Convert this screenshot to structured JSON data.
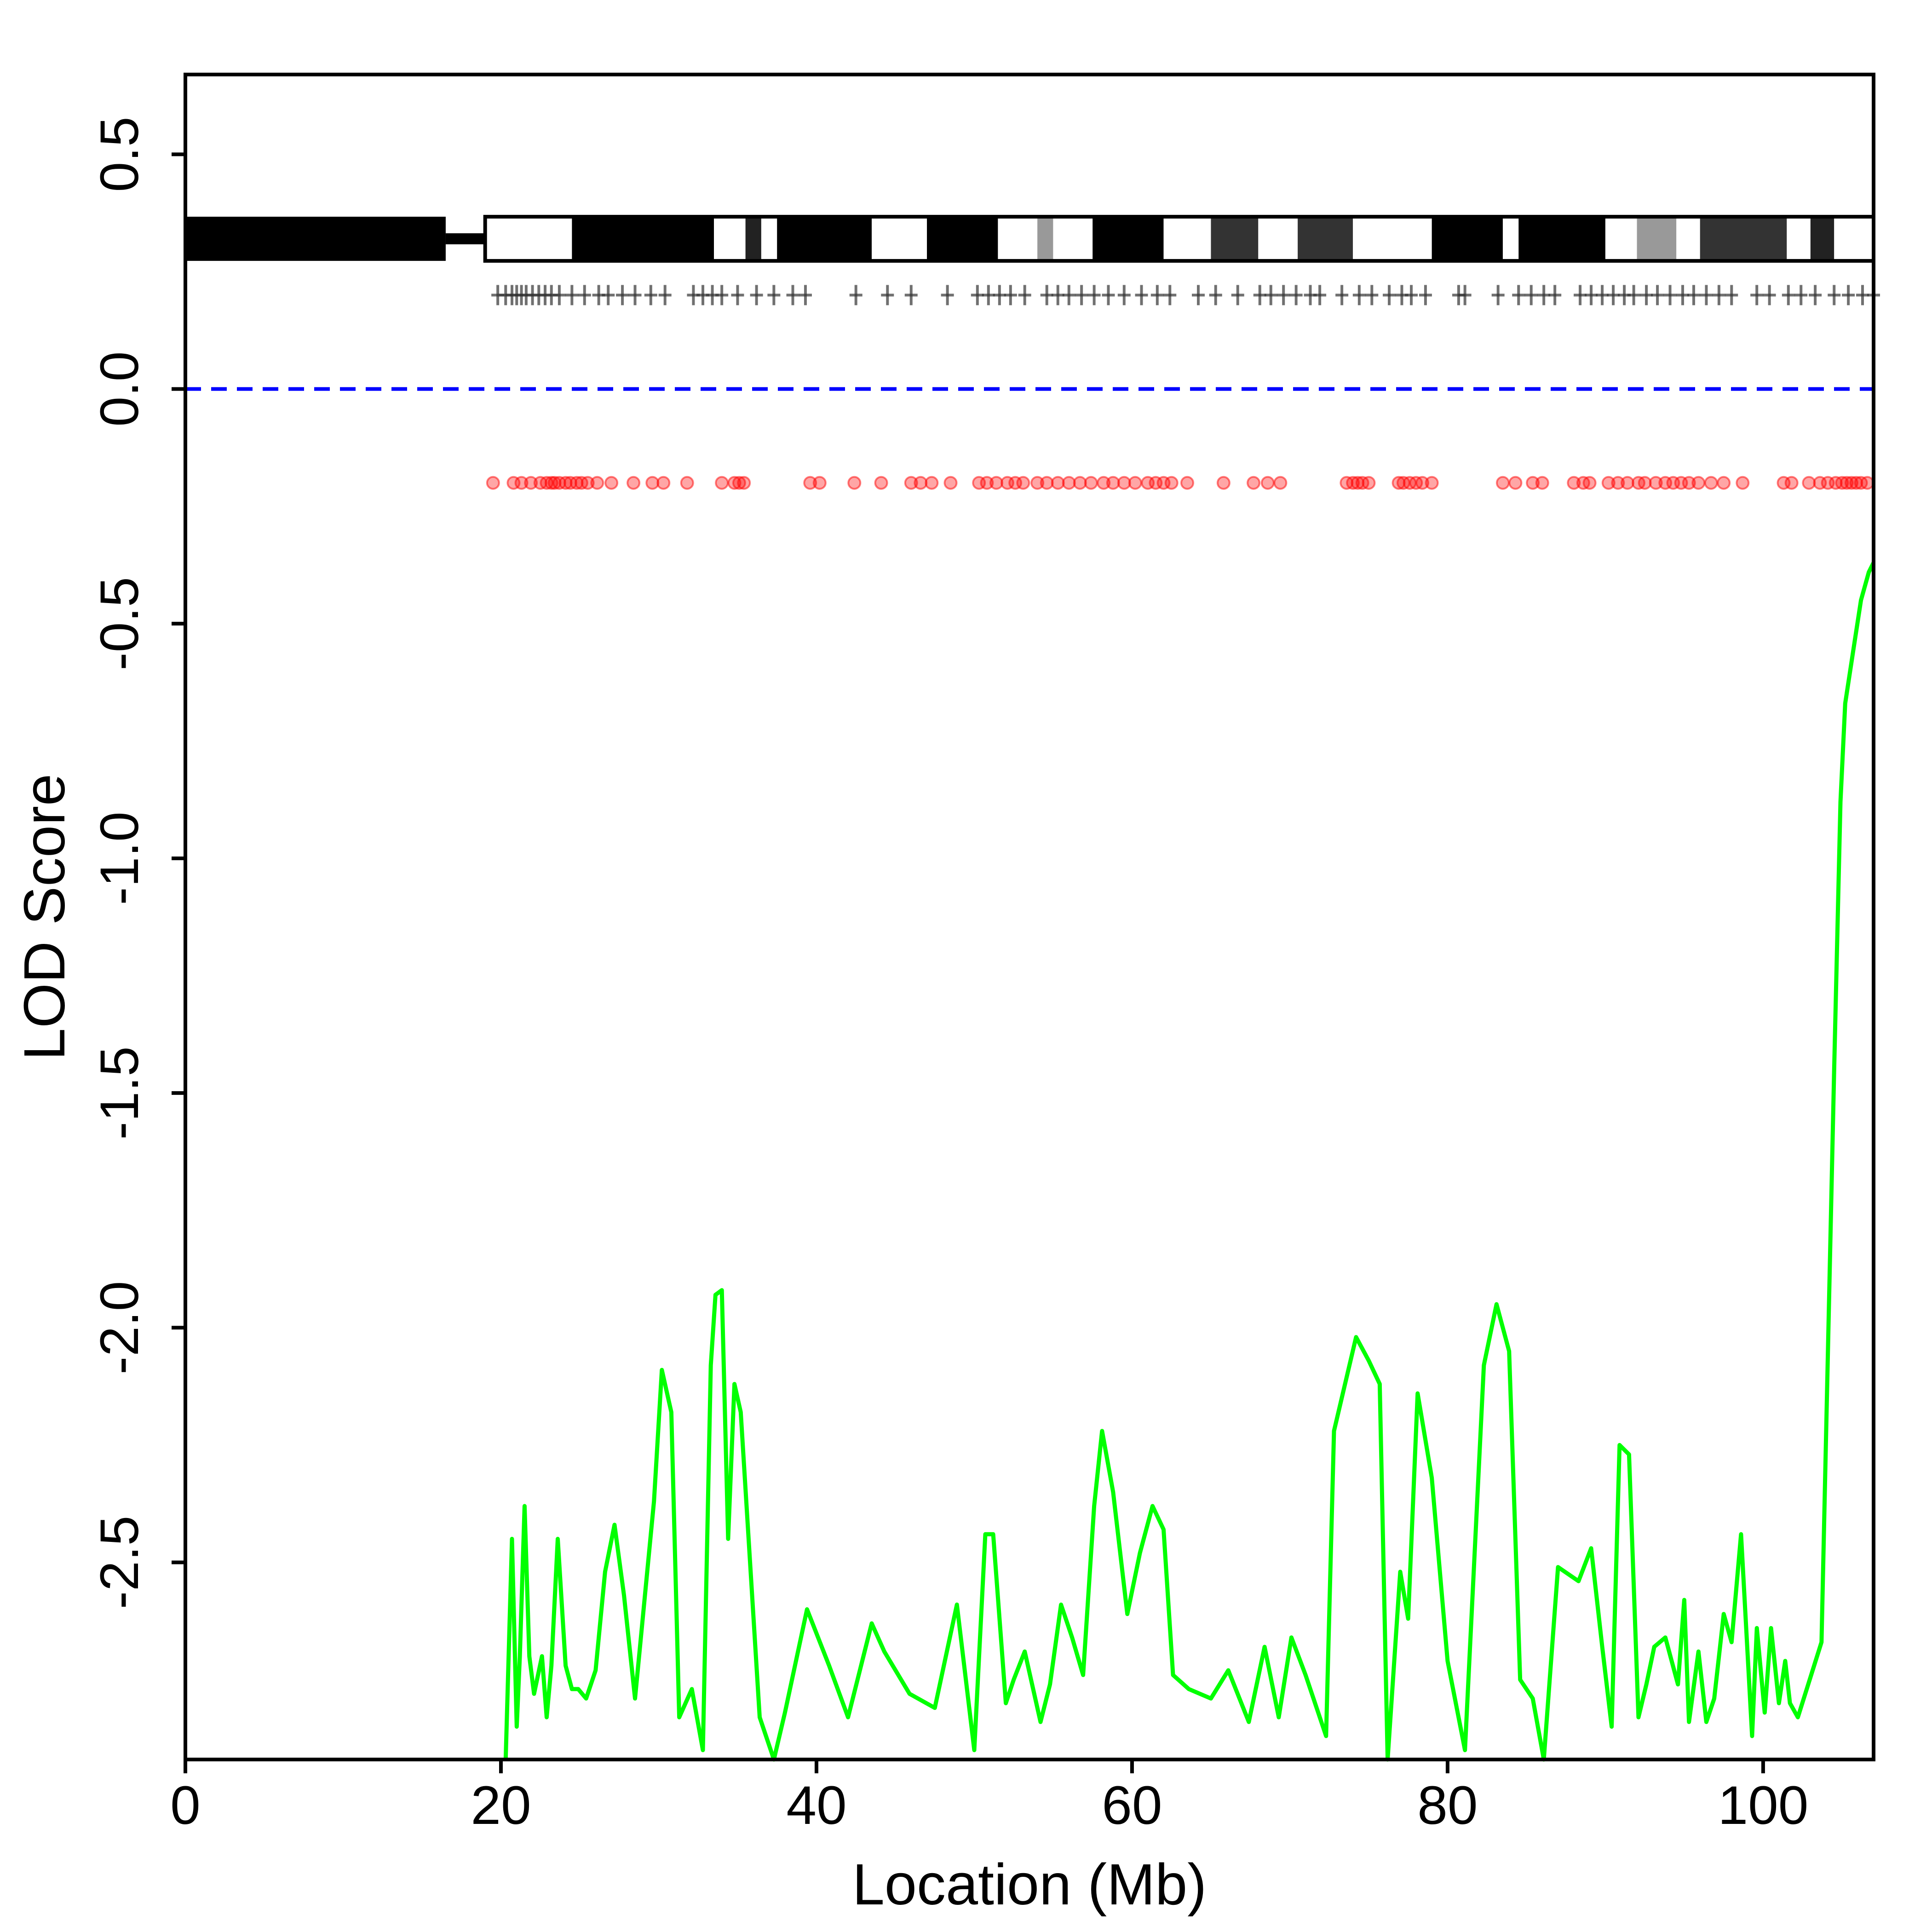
{
  "chart_data": {
    "type": "line",
    "xlabel": "Location (Mb)",
    "ylabel": "LOD Score",
    "xlim": [
      0,
      107
    ],
    "ylim": [
      -2.92,
      0.67
    ],
    "x_ticks": [
      0,
      20,
      40,
      60,
      80,
      100
    ],
    "x_tick_labels": [
      "0",
      "20",
      "40",
      "60",
      "80",
      "100"
    ],
    "y_ticks": [
      0.5,
      0.0,
      -0.5,
      -1.0,
      -1.5,
      -2.0,
      -2.5
    ],
    "y_tick_labels": [
      "0.5",
      "0.0",
      "-0.5",
      "-1.0",
      "-1.5",
      "-2.0",
      "-2.5"
    ],
    "threshold": {
      "y": 0.0,
      "color": "#0000ff",
      "style": "dashed"
    },
    "ideogram": {
      "y_center": 0.32,
      "centromere": [
        16.5,
        19.0
      ],
      "p_arm_color": "#000000",
      "bands": [
        {
          "start": 19.0,
          "end": 24.5,
          "color": "#ffffff"
        },
        {
          "start": 24.5,
          "end": 33.5,
          "color": "#000000"
        },
        {
          "start": 33.5,
          "end": 35.5,
          "color": "#ffffff"
        },
        {
          "start": 35.5,
          "end": 36.5,
          "color": "#222222"
        },
        {
          "start": 36.5,
          "end": 37.5,
          "color": "#ffffff"
        },
        {
          "start": 37.5,
          "end": 43.5,
          "color": "#000000"
        },
        {
          "start": 43.5,
          "end": 47.0,
          "color": "#ffffff"
        },
        {
          "start": 47.0,
          "end": 51.5,
          "color": "#000000"
        },
        {
          "start": 51.5,
          "end": 54.0,
          "color": "#ffffff"
        },
        {
          "start": 54.0,
          "end": 55.0,
          "color": "#999999"
        },
        {
          "start": 55.0,
          "end": 57.5,
          "color": "#ffffff"
        },
        {
          "start": 57.5,
          "end": 62.0,
          "color": "#000000"
        },
        {
          "start": 62.0,
          "end": 65.0,
          "color": "#ffffff"
        },
        {
          "start": 65.0,
          "end": 68.0,
          "color": "#333333"
        },
        {
          "start": 68.0,
          "end": 70.5,
          "color": "#ffffff"
        },
        {
          "start": 70.5,
          "end": 74.0,
          "color": "#333333"
        },
        {
          "start": 74.0,
          "end": 79.0,
          "color": "#ffffff"
        },
        {
          "start": 79.0,
          "end": 83.5,
          "color": "#000000"
        },
        {
          "start": 83.5,
          "end": 84.5,
          "color": "#ffffff"
        },
        {
          "start": 84.5,
          "end": 90.0,
          "color": "#000000"
        },
        {
          "start": 90.0,
          "end": 92.0,
          "color": "#ffffff"
        },
        {
          "start": 92.0,
          "end": 94.5,
          "color": "#999999"
        },
        {
          "start": 94.5,
          "end": 96.0,
          "color": "#ffffff"
        },
        {
          "start": 96.0,
          "end": 101.5,
          "color": "#333333"
        },
        {
          "start": 101.5,
          "end": 103.0,
          "color": "#ffffff"
        },
        {
          "start": 103.0,
          "end": 104.5,
          "color": "#222222"
        },
        {
          "start": 104.5,
          "end": 107.0,
          "color": "#ffffff"
        }
      ]
    },
    "markers": {
      "y": 0.2,
      "color": "#333333",
      "x": [
        19.8,
        20.3,
        20.7,
        21.0,
        21.3,
        21.6,
        22.0,
        22.4,
        22.8,
        23.2,
        23.7,
        24.5,
        25.3,
        26.2,
        26.8,
        27.7,
        28.5,
        29.5,
        30.4,
        32.2,
        32.8,
        33.4,
        34.0,
        35.0,
        36.2,
        37.3,
        38.5,
        39.3,
        42.5,
        44.5,
        46.0,
        48.3,
        50.2,
        50.9,
        51.6,
        52.3,
        53.2,
        54.6,
        55.3,
        56.0,
        56.8,
        57.6,
        58.5,
        59.5,
        60.6,
        61.6,
        62.4,
        64.2,
        65.3,
        66.7,
        68.1,
        68.8,
        69.6,
        70.4,
        71.3,
        71.9,
        73.3,
        74.4,
        75.2,
        76.3,
        77.1,
        77.7,
        78.6,
        80.7,
        81.1,
        83.2,
        84.5,
        85.3,
        86.1,
        86.8,
        88.4,
        89.1,
        89.8,
        90.5,
        91.2,
        91.8,
        92.6,
        93.3,
        94.1,
        94.9,
        95.6,
        96.4,
        97.2,
        98.0,
        99.6,
        100.4,
        101.6,
        102.4,
        103.3,
        104.5,
        105.4,
        106.3,
        107.0
      ]
    },
    "snp_dots": {
      "y": -0.2,
      "color": "#ff0000",
      "x": [
        19.5,
        20.8,
        21.3,
        21.9,
        22.5,
        22.9,
        23.2,
        23.4,
        23.7,
        24.1,
        24.4,
        24.8,
        25.1,
        25.5,
        26.1,
        27.0,
        28.4,
        29.6,
        30.3,
        31.8,
        34.0,
        34.8,
        35.1,
        35.4,
        39.6,
        40.2,
        42.4,
        44.1,
        46.0,
        46.6,
        47.3,
        48.5,
        50.3,
        50.8,
        51.4,
        52.1,
        52.6,
        53.1,
        54.0,
        54.6,
        55.3,
        56.0,
        56.7,
        57.4,
        58.2,
        58.8,
        59.5,
        60.2,
        61.0,
        61.5,
        62.0,
        62.5,
        63.5,
        65.8,
        67.7,
        68.6,
        69.4,
        73.6,
        74.0,
        74.3,
        74.6,
        75.0,
        76.9,
        77.2,
        77.6,
        78.0,
        78.4,
        79.0,
        83.5,
        84.3,
        85.4,
        86.0,
        88.0,
        88.6,
        89.0,
        90.2,
        90.8,
        91.4,
        92.1,
        92.5,
        93.2,
        93.8,
        94.3,
        94.8,
        95.3,
        95.9,
        96.7,
        97.5,
        98.7,
        101.3,
        101.8,
        102.9,
        103.6,
        104.1,
        104.6,
        105.0,
        105.3,
        105.6,
        105.9,
        106.2,
        106.6
      ]
    },
    "series": [
      {
        "color": "#00ff00",
        "x": [
          20.3,
          20.7,
          21.0,
          21.2,
          21.5,
          21.8,
          22.1,
          22.6,
          22.9,
          23.2,
          23.6,
          24.1,
          24.5,
          24.9,
          25.4,
          26.0,
          26.6,
          27.2,
          27.8,
          28.5,
          29.1,
          29.7,
          30.2,
          30.8,
          31.3,
          32.1,
          32.8,
          33.3,
          33.6,
          34.0,
          34.4,
          34.8,
          35.2,
          36.4,
          37.3,
          38.0,
          39.4,
          40.8,
          42.0,
          43.5,
          44.3,
          45.9,
          47.5,
          48.9,
          50.0,
          50.7,
          51.2,
          52.0,
          52.5,
          53.2,
          54.2,
          54.8,
          55.5,
          56.2,
          56.9,
          57.6,
          58.1,
          58.8,
          59.7,
          60.5,
          61.3,
          62.0,
          62.6,
          63.6,
          65.0,
          66.1,
          67.4,
          68.4,
          69.3,
          70.1,
          71.0,
          72.3,
          72.8,
          74.2,
          75.0,
          75.7,
          76.2,
          77.0,
          77.5,
          78.1,
          79.0,
          80.0,
          81.1,
          82.3,
          83.1,
          83.9,
          84.6,
          85.4,
          86.1,
          87.0,
          88.3,
          89.1,
          89.8,
          90.4,
          90.9,
          91.5,
          92.1,
          92.6,
          93.1,
          93.8,
          94.6,
          95.0,
          95.3,
          95.9,
          96.4,
          96.9,
          97.5,
          98.0,
          98.6,
          99.3,
          99.6,
          100.1,
          100.5,
          101.0,
          101.4,
          101.7,
          102.2,
          103.7,
          104.5,
          104.9,
          105.2,
          105.7,
          106.2,
          106.7,
          107.0
        ],
        "values": [
          -2.92,
          -2.45,
          -2.85,
          -2.7,
          -2.38,
          -2.7,
          -2.78,
          -2.7,
          -2.83,
          -2.72,
          -2.45,
          -2.72,
          -2.77,
          -2.77,
          -2.79,
          -2.73,
          -2.52,
          -2.42,
          -2.57,
          -2.79,
          -2.58,
          -2.37,
          -2.09,
          -2.18,
          -2.83,
          -2.77,
          -2.9,
          -2.08,
          -1.93,
          -1.92,
          -2.45,
          -2.12,
          -2.18,
          -2.83,
          -2.92,
          -2.82,
          -2.6,
          -2.72,
          -2.83,
          -2.63,
          -2.69,
          -2.78,
          -2.81,
          -2.59,
          -2.9,
          -2.44,
          -2.44,
          -2.8,
          -2.75,
          -2.69,
          -2.84,
          -2.76,
          -2.59,
          -2.66,
          -2.74,
          -2.38,
          -2.22,
          -2.35,
          -2.61,
          -2.48,
          -2.38,
          -2.43,
          -2.74,
          -2.77,
          -2.79,
          -2.73,
          -2.84,
          -2.68,
          -2.83,
          -2.66,
          -2.74,
          -2.87,
          -2.22,
          -2.02,
          -2.07,
          -2.12,
          -2.92,
          -2.52,
          -2.62,
          -2.14,
          -2.32,
          -2.71,
          -2.9,
          -2.08,
          -1.95,
          -2.05,
          -2.75,
          -2.79,
          -2.92,
          -2.51,
          -2.54,
          -2.47,
          -2.68,
          -2.85,
          -2.25,
          -2.27,
          -2.83,
          -2.76,
          -2.68,
          -2.66,
          -2.76,
          -2.58,
          -2.84,
          -2.69,
          -2.84,
          -2.79,
          -2.61,
          -2.67,
          -2.44,
          -2.87,
          -2.64,
          -2.82,
          -2.64,
          -2.8,
          -2.71,
          -2.8,
          -2.83,
          -2.67,
          -1.45,
          -0.88,
          -0.67,
          -0.56,
          -0.45,
          -0.39,
          -0.37
        ]
      }
    ]
  }
}
